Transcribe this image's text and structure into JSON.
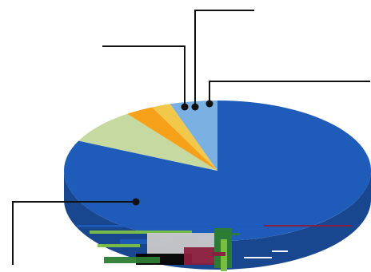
{
  "chart_data": {
    "type": "pie",
    "style": "3d-tilted",
    "legend": "none",
    "slices": [
      {
        "value": 82.0,
        "color": "#1f5bb8"
      },
      {
        "value": 8.0,
        "color": "#c5d9a0"
      },
      {
        "value": 3.0,
        "color": "#f6a11a"
      },
      {
        "value": 2.0,
        "color": "#f2c84b"
      },
      {
        "value": 5.0,
        "color": "#7ab0e2"
      }
    ],
    "leader_color": "#111111",
    "glitch_colors": [
      "#1f5bb8",
      "#2e7d32",
      "#7cc242",
      "#c9c9c9",
      "#000000",
      "#8a1f3d",
      "#ffffff"
    ]
  }
}
